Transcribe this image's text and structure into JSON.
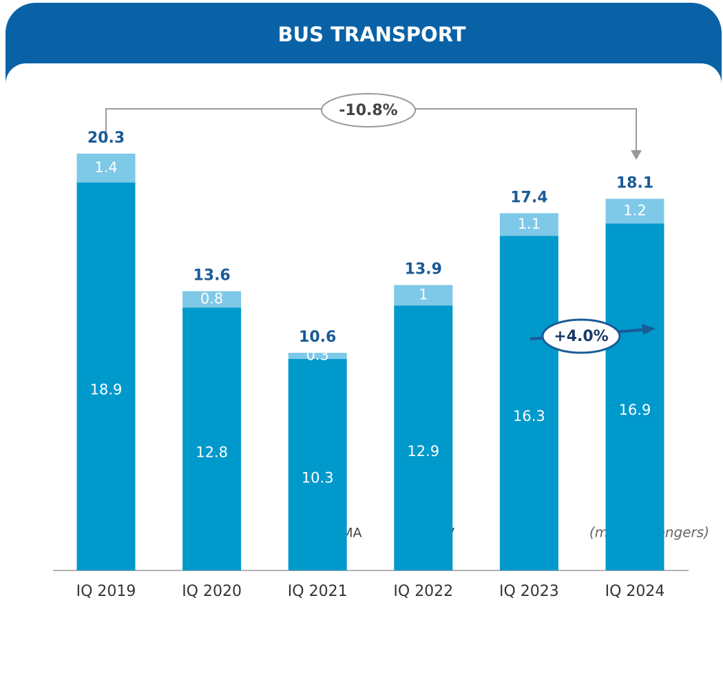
{
  "chart_data": {
    "type": "stacked_bar",
    "title": "BUS TRANSPORT",
    "categories": [
      "IQ 2019",
      "IQ 2020",
      "IQ 2021",
      "IQ 2022",
      "IQ 2023",
      "IQ 2024"
    ],
    "series": [
      {
        "name": "ATV",
        "color": "#0099cc",
        "values": [
          18.9,
          12.8,
          10.3,
          12.9,
          16.3,
          16.9
        ]
      },
      {
        "name": "FNMA",
        "color": "#7ec8e8",
        "values": [
          1.4,
          0.8,
          0.3,
          1.0,
          1.1,
          1.2
        ]
      }
    ],
    "totals": [
      20.3,
      13.6,
      10.6,
      13.9,
      17.4,
      18.1
    ],
    "annotations": {
      "change_2019_2024": "-10.8%",
      "change_2023_2024": "+4.0%"
    },
    "unit_note": "(mln passengers)"
  }
}
